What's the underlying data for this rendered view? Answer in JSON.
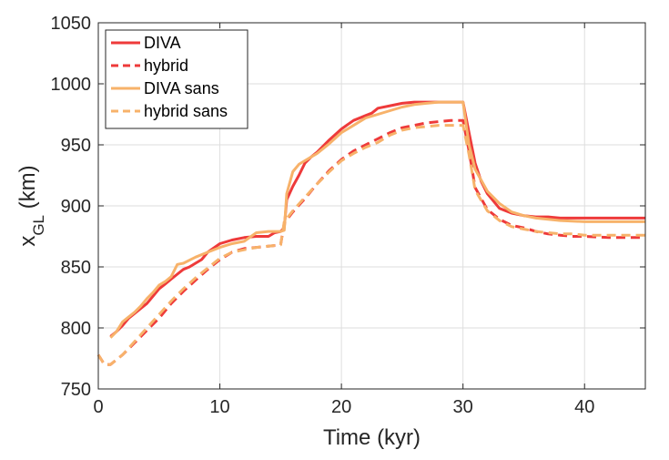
{
  "chart_data": {
    "type": "line",
    "xlabel": "Time (kyr)",
    "ylabel": {
      "main": "x",
      "sub": "GL",
      "suffix": " (km)"
    },
    "xlim": [
      0,
      45
    ],
    "ylim": [
      750,
      1050
    ],
    "xticks": [
      0,
      10,
      20,
      30,
      40
    ],
    "yticks": [
      750,
      800,
      850,
      900,
      950,
      1000,
      1050
    ],
    "grid": true,
    "legend_position": "top-left",
    "series": [
      {
        "name": "DIVA",
        "color": "#ee3a3a",
        "dash": "solid",
        "x": [
          1.0,
          1.5,
          2.0,
          2.5,
          3.0,
          3.5,
          4.0,
          4.5,
          5.0,
          5.5,
          6.0,
          6.5,
          7.0,
          7.5,
          8.0,
          8.5,
          9.0,
          10.0,
          11.0,
          12.0,
          13.0,
          14.0,
          14.5,
          15.0,
          15.3,
          15.5,
          16.0,
          16.5,
          17.0,
          17.5,
          18.0,
          19.0,
          20.0,
          21.0,
          22.0,
          22.5,
          23.0,
          24.0,
          25.0,
          26.0,
          27.0,
          28.0,
          29.0,
          30.0,
          30.5,
          31.0,
          31.5,
          32.0,
          33.0,
          34.0,
          35.0,
          36.0,
          37.0,
          38.0,
          40.0,
          42.0,
          44.0,
          45.0
        ],
        "y": [
          793,
          797,
          802,
          808,
          812,
          816,
          820,
          826,
          832,
          836,
          840,
          844,
          848,
          850,
          853,
          856,
          862,
          869,
          872,
          874,
          875,
          875,
          878,
          879,
          882,
          905,
          916,
          925,
          935,
          940,
          944,
          954,
          963,
          970,
          974,
          976,
          980,
          982,
          984,
          985,
          985,
          985,
          985,
          985,
          960,
          935,
          920,
          910,
          898,
          894,
          892,
          891,
          891,
          890,
          890,
          890,
          890,
          890
        ]
      },
      {
        "name": "hybrid",
        "color": "#ee3a3a",
        "dash": "dashed",
        "x": [
          0.0,
          0.5,
          1.0,
          2.0,
          3.0,
          4.0,
          5.0,
          6.0,
          7.0,
          8.0,
          9.0,
          10.0,
          11.0,
          12.0,
          13.0,
          14.0,
          15.0,
          15.3,
          16.0,
          17.0,
          18.0,
          19.0,
          20.0,
          21.0,
          22.0,
          23.0,
          24.0,
          25.0,
          26.0,
          27.0,
          28.0,
          29.0,
          30.0,
          30.5,
          31.0,
          32.0,
          33.0,
          34.0,
          35.0,
          36.0,
          37.0,
          38.0,
          39.0,
          40.0,
          42.0,
          44.0,
          45.0
        ],
        "y": [
          778,
          770,
          770,
          778,
          788,
          798,
          808,
          820,
          830,
          839,
          848,
          856,
          862,
          865,
          866,
          867,
          868,
          886,
          895,
          906,
          918,
          929,
          938,
          945,
          950,
          955,
          960,
          964,
          966,
          968,
          969,
          970,
          970,
          945,
          915,
          897,
          889,
          884,
          882,
          879,
          877,
          876,
          875,
          875,
          874,
          874,
          874
        ]
      },
      {
        "name": "DIVA sans",
        "color": "#f7b26a",
        "dash": "solid",
        "x": [
          1.0,
          1.5,
          2.0,
          2.5,
          3.0,
          3.5,
          4.0,
          4.5,
          5.0,
          5.5,
          6.0,
          6.5,
          7.0,
          8.0,
          9.0,
          10.0,
          11.0,
          12.0,
          13.0,
          14.0,
          15.0,
          15.3,
          15.5,
          16.0,
          16.5,
          17.0,
          18.0,
          19.0,
          20.0,
          21.0,
          22.0,
          23.0,
          24.0,
          25.0,
          26.0,
          27.0,
          28.0,
          29.0,
          30.0,
          30.5,
          31.0,
          32.0,
          33.0,
          34.0,
          35.0,
          36.0,
          37.0,
          38.0,
          40.0,
          42.0,
          44.0,
          45.0
        ],
        "y": [
          792,
          797,
          805,
          809,
          813,
          818,
          824,
          829,
          835,
          838,
          842,
          852,
          853,
          858,
          862,
          866,
          869,
          871,
          878,
          879,
          879,
          880,
          910,
          928,
          934,
          937,
          943,
          951,
          960,
          966,
          972,
          975,
          978,
          981,
          983,
          984,
          985,
          985,
          985,
          950,
          930,
          912,
          902,
          895,
          892,
          890,
          889,
          888,
          887,
          887,
          887,
          887
        ]
      },
      {
        "name": "hybrid sans",
        "color": "#f7b26a",
        "dash": "dashed",
        "x": [
          0.0,
          0.5,
          1.0,
          2.0,
          3.0,
          4.0,
          5.0,
          6.0,
          7.0,
          8.0,
          9.0,
          10.0,
          11.0,
          12.0,
          13.0,
          14.0,
          15.0,
          15.3,
          16.0,
          17.0,
          18.0,
          19.0,
          20.0,
          21.0,
          22.0,
          23.0,
          24.0,
          25.0,
          26.0,
          27.0,
          28.0,
          29.0,
          30.0,
          30.5,
          31.0,
          32.0,
          33.0,
          34.0,
          35.0,
          36.0,
          37.0,
          38.0,
          39.0,
          40.0,
          42.0,
          44.0,
          45.0
        ],
        "y": [
          778,
          770,
          770,
          778,
          789,
          800,
          811,
          822,
          832,
          841,
          849,
          857,
          862,
          864,
          866,
          867,
          868,
          887,
          896,
          907,
          918,
          928,
          937,
          943,
          948,
          952,
          958,
          962,
          964,
          965,
          966,
          966,
          966,
          942,
          913,
          896,
          888,
          883,
          881,
          879,
          878,
          877,
          877,
          876,
          876,
          876,
          876
        ]
      }
    ]
  }
}
